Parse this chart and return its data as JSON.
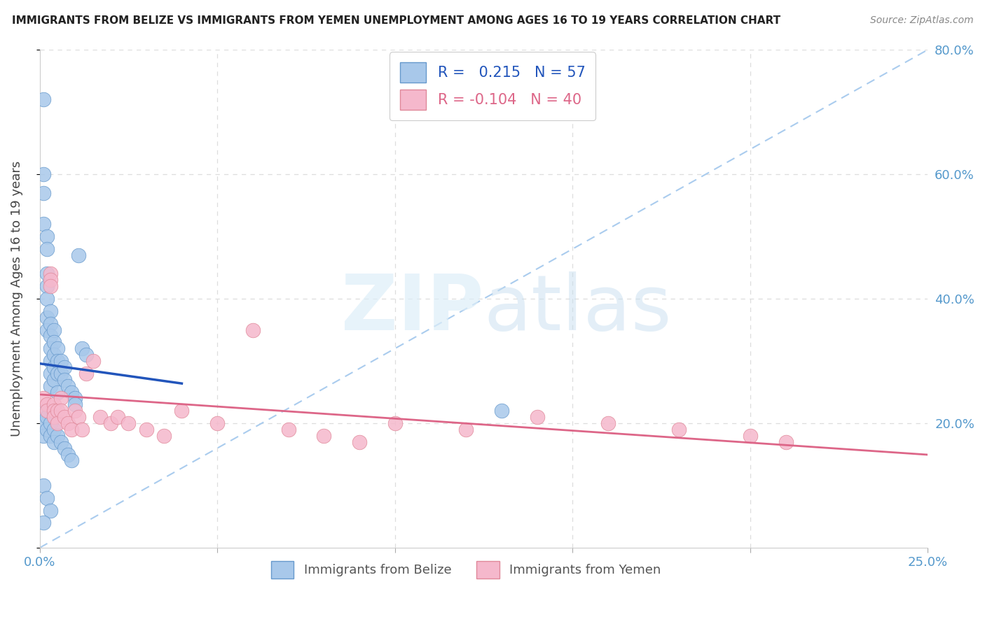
{
  "title": "IMMIGRANTS FROM BELIZE VS IMMIGRANTS FROM YEMEN UNEMPLOYMENT AMONG AGES 16 TO 19 YEARS CORRELATION CHART",
  "source": "Source: ZipAtlas.com",
  "ylabel": "Unemployment Among Ages 16 to 19 years",
  "xlim": [
    0.0,
    0.25
  ],
  "ylim": [
    0.0,
    0.8
  ],
  "belize_color": "#a8c8ea",
  "belize_edge": "#6699cc",
  "yemen_color": "#f5b8cc",
  "yemen_edge": "#e08899",
  "blue_line_color": "#2255bb",
  "pink_line_color": "#dd6688",
  "diag_color": "#aaccee",
  "grid_color": "#dddddd",
  "R_belize": 0.215,
  "N_belize": 57,
  "R_yemen": -0.104,
  "N_yemen": 40,
  "label_belize": "Immigrants from Belize",
  "label_yemen": "Immigrants from Yemen",
  "tick_color": "#5599cc",
  "title_color": "#222222",
  "source_color": "#888888",
  "ylabel_color": "#444444",
  "belize_x": [
    0.001,
    0.001,
    0.001,
    0.001,
    0.002,
    0.002,
    0.002,
    0.002,
    0.002,
    0.002,
    0.002,
    0.003,
    0.003,
    0.003,
    0.003,
    0.003,
    0.003,
    0.003,
    0.004,
    0.004,
    0.004,
    0.004,
    0.004,
    0.005,
    0.005,
    0.005,
    0.005,
    0.006,
    0.006,
    0.007,
    0.007,
    0.008,
    0.009,
    0.01,
    0.01,
    0.011,
    0.012,
    0.013,
    0.001,
    0.001,
    0.001,
    0.002,
    0.002,
    0.003,
    0.003,
    0.004,
    0.004,
    0.005,
    0.006,
    0.007,
    0.008,
    0.009,
    0.001,
    0.002,
    0.003,
    0.13,
    0.001
  ],
  "belize_y": [
    0.72,
    0.6,
    0.57,
    0.52,
    0.5,
    0.48,
    0.44,
    0.42,
    0.4,
    0.37,
    0.35,
    0.38,
    0.36,
    0.34,
    0.32,
    0.3,
    0.28,
    0.26,
    0.35,
    0.33,
    0.31,
    0.29,
    0.27,
    0.32,
    0.3,
    0.28,
    0.25,
    0.3,
    0.28,
    0.29,
    0.27,
    0.26,
    0.25,
    0.24,
    0.23,
    0.47,
    0.32,
    0.31,
    0.22,
    0.2,
    0.18,
    0.21,
    0.19,
    0.2,
    0.18,
    0.19,
    0.17,
    0.18,
    0.17,
    0.16,
    0.15,
    0.14,
    0.1,
    0.08,
    0.06,
    0.22,
    0.04
  ],
  "yemen_x": [
    0.001,
    0.002,
    0.002,
    0.003,
    0.003,
    0.003,
    0.004,
    0.004,
    0.004,
    0.005,
    0.005,
    0.006,
    0.006,
    0.007,
    0.008,
    0.009,
    0.01,
    0.011,
    0.012,
    0.013,
    0.015,
    0.017,
    0.02,
    0.022,
    0.025,
    0.03,
    0.035,
    0.04,
    0.05,
    0.06,
    0.07,
    0.08,
    0.09,
    0.1,
    0.12,
    0.14,
    0.16,
    0.18,
    0.2,
    0.21
  ],
  "yemen_y": [
    0.24,
    0.23,
    0.22,
    0.44,
    0.43,
    0.42,
    0.23,
    0.22,
    0.21,
    0.22,
    0.2,
    0.24,
    0.22,
    0.21,
    0.2,
    0.19,
    0.22,
    0.21,
    0.19,
    0.28,
    0.3,
    0.21,
    0.2,
    0.21,
    0.2,
    0.19,
    0.18,
    0.22,
    0.2,
    0.35,
    0.19,
    0.18,
    0.17,
    0.2,
    0.19,
    0.21,
    0.2,
    0.19,
    0.18,
    0.17
  ]
}
